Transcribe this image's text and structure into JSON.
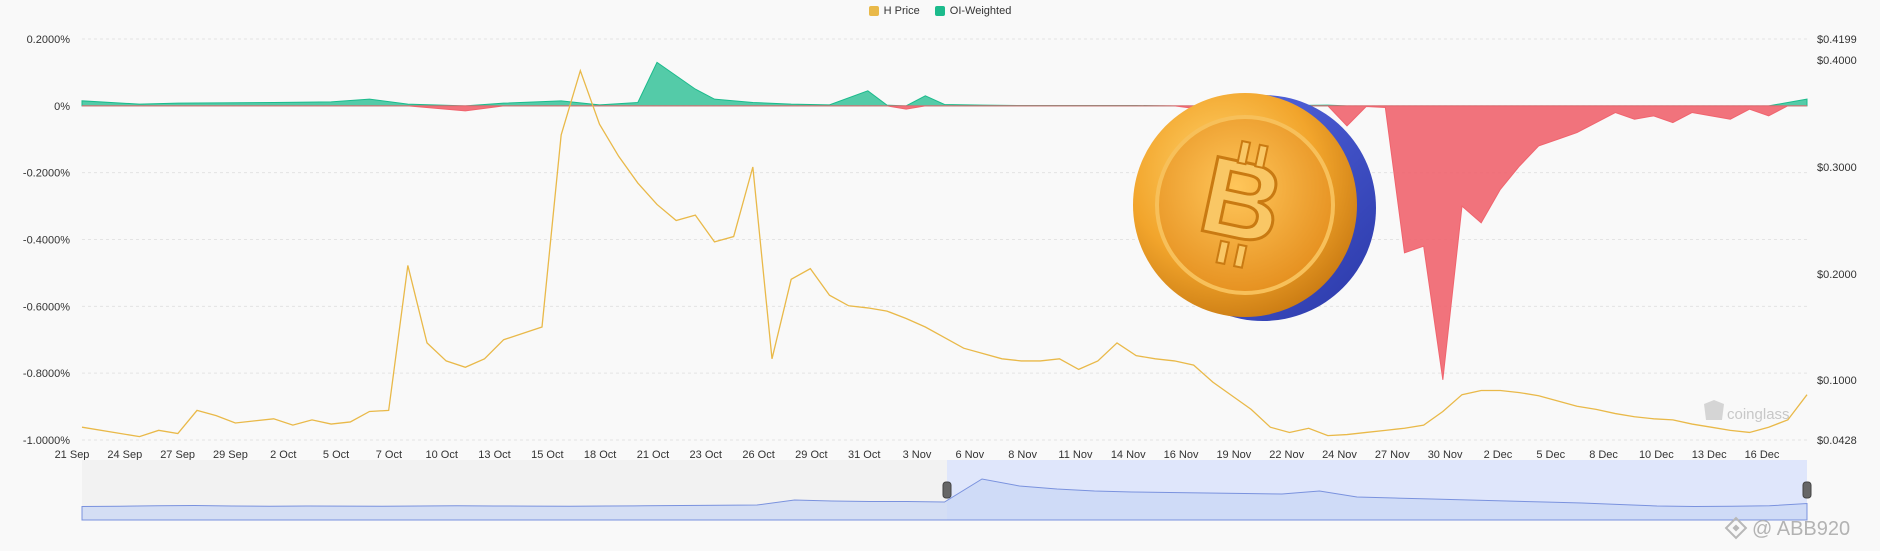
{
  "legend": [
    {
      "label": "H Price",
      "color": "#e9b949"
    },
    {
      "label": "OI-Weighted",
      "color": "#1cbb8c"
    }
  ],
  "watermark": {
    "coinglass": "coinglass",
    "author": "@ ABB920",
    "platform_logo": "binance-square-icon"
  },
  "colors": {
    "price_line": "#e9b949",
    "positive_fill": "#1cbb8c",
    "negative_fill": "#f0646e",
    "navigator_fill": "#c8d6f5",
    "navigator_line": "#7a92de",
    "navigator_selected": "#dfe6fb"
  },
  "chart_data": {
    "type": "area",
    "title": "",
    "left_axis": {
      "ticks": [
        "0.2000%",
        "0%",
        "-0.2000%",
        "-0.4000%",
        "-0.6000%",
        "-0.8000%",
        "-1.0000%"
      ],
      "range": [
        -1.0,
        0.2
      ]
    },
    "right_axis": {
      "ticks": [
        "$0.4199",
        "$0.4000",
        "$0.3000",
        "$0.2000",
        "$0.1000",
        "$0.0428"
      ],
      "range": [
        0.0428,
        0.4199
      ]
    },
    "x_ticks": [
      "21 Sep",
      "24 Sep",
      "27 Sep",
      "29 Sep",
      "2 Oct",
      "5 Oct",
      "7 Oct",
      "10 Oct",
      "13 Oct",
      "15 Oct",
      "18 Oct",
      "21 Oct",
      "23 Oct",
      "26 Oct",
      "29 Oct",
      "31 Oct",
      "3 Nov",
      "6 Nov",
      "8 Nov",
      "11 Nov",
      "14 Nov",
      "16 Nov",
      "19 Nov",
      "22 Nov",
      "24 Nov",
      "27 Nov",
      "30 Nov",
      "2 Dec",
      "5 Dec",
      "8 Dec",
      "10 Dec",
      "13 Dec",
      "16 Dec"
    ],
    "series": [
      {
        "name": "H Price",
        "axis": "right",
        "t": [
          0,
          3,
          4,
          5,
          6,
          7,
          8,
          9,
          10,
          11,
          12,
          13,
          14,
          15,
          16,
          17,
          18,
          19,
          20,
          21,
          22,
          23,
          24,
          25,
          26,
          27,
          28,
          29,
          30,
          31,
          32,
          33,
          34,
          35,
          36,
          37,
          38,
          39,
          40,
          41,
          42,
          43,
          44,
          45,
          46,
          47,
          48,
          49,
          50,
          51,
          52,
          53,
          54,
          55,
          56,
          57,
          58,
          59,
          60,
          61,
          62,
          63,
          64,
          65,
          66,
          67,
          68,
          69,
          70,
          71,
          72,
          73,
          74,
          75,
          76,
          77,
          78,
          79,
          80,
          81,
          82,
          83,
          84,
          85,
          86,
          87,
          88,
          89,
          90
        ],
        "values": [
          0.055,
          0.046,
          0.052,
          0.049,
          0.071,
          0.066,
          0.059,
          0.061,
          0.063,
          0.057,
          0.062,
          0.058,
          0.06,
          0.07,
          0.071,
          0.208,
          0.135,
          0.118,
          0.112,
          0.12,
          0.138,
          0.144,
          0.15,
          0.33,
          0.39,
          0.34,
          0.31,
          0.285,
          0.265,
          0.25,
          0.255,
          0.23,
          0.235,
          0.3,
          0.12,
          0.195,
          0.205,
          0.18,
          0.17,
          0.168,
          0.165,
          0.158,
          0.15,
          0.14,
          0.13,
          0.125,
          0.12,
          0.118,
          0.118,
          0.12,
          0.11,
          0.118,
          0.135,
          0.123,
          0.12,
          0.118,
          0.114,
          0.098,
          0.085,
          0.072,
          0.055,
          0.05,
          0.054,
          0.047,
          0.048,
          0.05,
          0.052,
          0.054,
          0.057,
          0.07,
          0.086,
          0.09,
          0.09,
          0.088,
          0.085,
          0.08,
          0.075,
          0.072,
          0.068,
          0.065,
          0.063,
          0.062,
          0.058,
          0.055,
          0.052,
          0.05,
          0.055,
          0.062,
          0.086
        ]
      },
      {
        "name": "OI-Weighted",
        "axis": "left",
        "t": [
          0,
          3,
          5,
          10,
          13,
          15,
          17,
          20,
          22,
          25,
          27,
          29,
          30,
          32,
          33,
          35,
          37,
          39,
          41,
          42,
          43,
          44,
          45,
          47,
          49,
          51,
          53,
          55,
          57,
          59,
          61,
          63,
          65,
          66,
          67,
          68,
          69,
          70,
          71,
          72,
          73,
          74,
          75,
          76,
          77,
          78,
          79,
          80,
          81,
          82,
          83,
          84,
          85,
          86,
          87,
          88,
          89,
          90
        ],
        "values": [
          0.015,
          0.005,
          0.008,
          0.01,
          0.012,
          0.02,
          0.005,
          -0.015,
          0.008,
          0.015,
          0.003,
          0.01,
          0.13,
          0.05,
          0.02,
          0.01,
          0.005,
          0.003,
          0.045,
          0.002,
          -0.01,
          0.03,
          0.004,
          0.002,
          0.001,
          0.001,
          0.001,
          0.001,
          0.0,
          -0.015,
          0.0,
          0.001,
          0.002,
          -0.06,
          -0.002,
          -0.005,
          -0.44,
          -0.42,
          -0.82,
          -0.3,
          -0.35,
          -0.25,
          -0.18,
          -0.12,
          -0.1,
          -0.08,
          -0.05,
          -0.02,
          -0.04,
          -0.03,
          -0.05,
          -0.02,
          -0.03,
          -0.04,
          -0.01,
          -0.03,
          0.01,
          0.02
        ]
      }
    ],
    "navigator": {
      "values": [
        0.055,
        0.058,
        0.062,
        0.065,
        0.06,
        0.058,
        0.06,
        0.059,
        0.058,
        0.06,
        0.062,
        0.06,
        0.059,
        0.058,
        0.06,
        0.062,
        0.065,
        0.067,
        0.07,
        0.12,
        0.11,
        0.105,
        0.105,
        0.1,
        0.33,
        0.26,
        0.23,
        0.21,
        0.2,
        0.195,
        0.19,
        0.185,
        0.18,
        0.21,
        0.15,
        0.14,
        0.13,
        0.12,
        0.11,
        0.1,
        0.09,
        0.075,
        0.06,
        0.055,
        0.058,
        0.062,
        0.085
      ]
    }
  }
}
